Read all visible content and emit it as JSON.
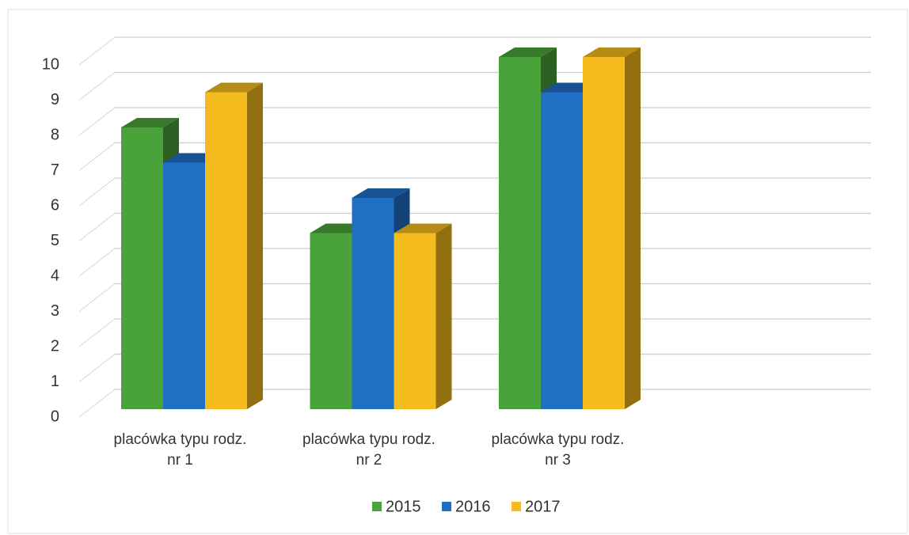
{
  "chart_data": {
    "type": "bar3d",
    "categories": [
      "placówka typu rodz. nr 1",
      "placówka typu rodz. nr 2",
      "placówka typu rodz. nr 3"
    ],
    "series": [
      {
        "name": "2015",
        "color": "#4aa23a",
        "values": [
          8,
          5,
          10
        ]
      },
      {
        "name": "2016",
        "color": "#1f6fc5",
        "values": [
          7,
          6,
          9
        ]
      },
      {
        "name": "2017",
        "color": "#f3bb1d",
        "values": [
          9,
          5,
          10
        ]
      }
    ],
    "ylim": [
      0,
      10
    ],
    "yticks": [
      0,
      1,
      2,
      3,
      4,
      5,
      6,
      7,
      8,
      9,
      10
    ],
    "grid": true,
    "legend": "bottom"
  }
}
